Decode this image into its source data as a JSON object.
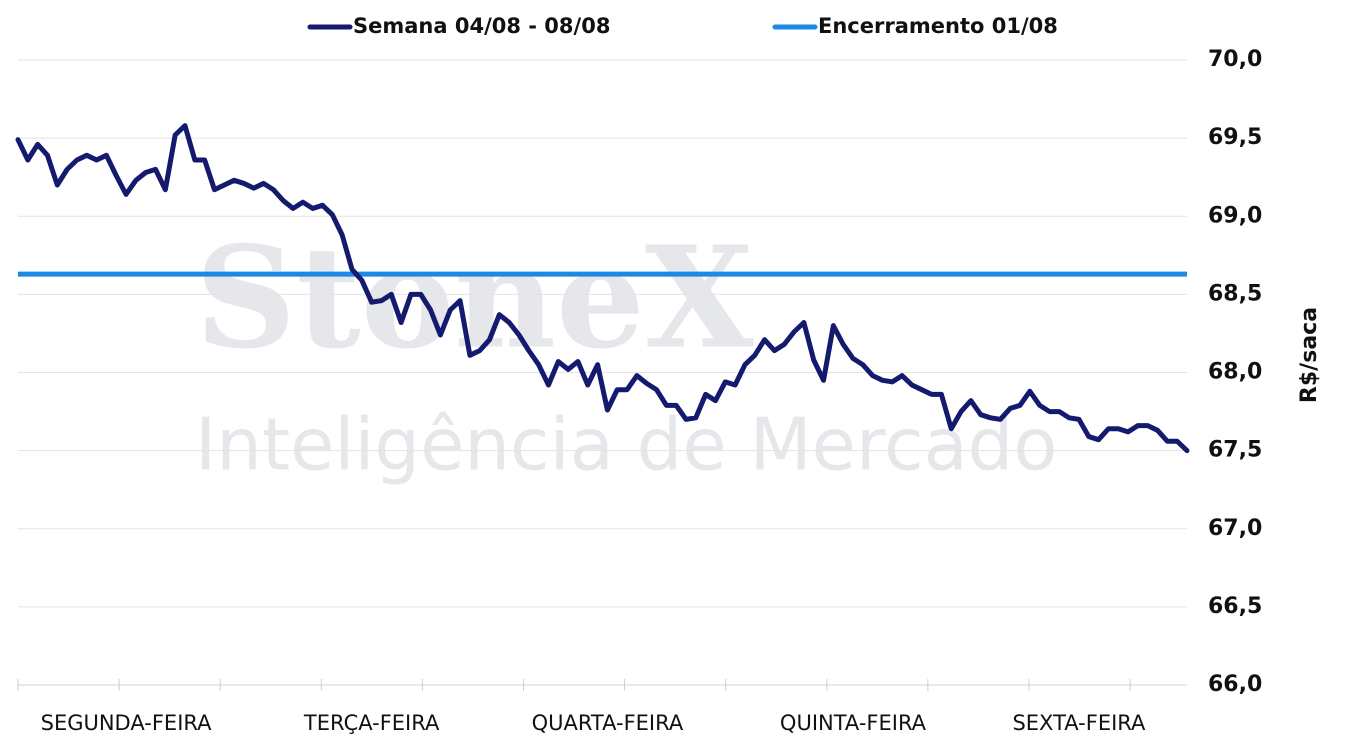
{
  "chart_data": {
    "type": "line",
    "watermark": [
      "StoneX",
      "Inteligência de Mercado"
    ],
    "y_label": "R$/saca",
    "categories": [
      null,
      null,
      null,
      null,
      null,
      null,
      null,
      null,
      null,
      null,
      null,
      "SEGUNDA-FEIRA",
      null,
      null,
      null,
      null,
      null,
      null,
      null,
      null,
      null,
      null,
      null,
      null,
      null,
      null,
      null,
      null,
      null,
      null,
      null,
      null,
      null,
      null,
      null,
      null,
      "TERÇA-FEIRA",
      null,
      null,
      null,
      null,
      null,
      null,
      null,
      null,
      null,
      null,
      null,
      null,
      null,
      null,
      null,
      null,
      null,
      null,
      null,
      null,
      null,
      null,
      null,
      "QUARTA-FEIRA",
      null,
      null,
      null,
      null,
      null,
      null,
      null,
      null,
      null,
      null,
      null,
      null,
      null,
      null,
      null,
      null,
      null,
      null,
      null,
      null,
      null,
      null,
      null,
      null,
      "QUINTA-FEIRA",
      null,
      null,
      null,
      null,
      null,
      null,
      null,
      null,
      null,
      null,
      null,
      null,
      null,
      null,
      null,
      null,
      null,
      null,
      null,
      null,
      null,
      null,
      "SEXTA-FEIRA",
      null,
      null,
      null,
      null,
      null,
      null,
      null,
      null,
      null,
      null,
      null
    ],
    "series": [
      {
        "name": "Semana 04/08 - 08/08",
        "color": "#141a6e",
        "values": [
          69.49,
          69.36,
          69.46,
          69.39,
          69.2,
          69.3,
          69.36,
          69.39,
          69.36,
          69.39,
          69.26,
          69.14,
          69.23,
          69.28,
          69.3,
          69.17,
          69.52,
          69.58,
          69.36,
          69.36,
          69.17,
          69.2,
          69.23,
          69.21,
          69.18,
          69.21,
          69.17,
          69.1,
          69.05,
          69.09,
          69.05,
          69.07,
          69.01,
          68.88,
          68.66,
          68.59,
          68.45,
          68.46,
          68.5,
          68.32,
          68.5,
          68.5,
          68.4,
          68.24,
          68.4,
          68.46,
          68.11,
          68.14,
          68.21,
          68.37,
          68.32,
          68.24,
          68.14,
          68.05,
          67.92,
          68.07,
          68.02,
          68.07,
          67.92,
          68.05,
          67.76,
          67.89,
          67.89,
          67.98,
          67.93,
          67.89,
          67.79,
          67.79,
          67.7,
          67.71,
          67.86,
          67.82,
          67.94,
          67.92,
          68.05,
          68.11,
          68.21,
          68.14,
          68.18,
          68.26,
          68.32,
          68.08,
          67.95,
          68.3,
          68.18,
          68.09,
          68.05,
          67.98,
          67.95,
          67.94,
          67.98,
          67.92,
          67.89,
          67.86,
          67.86,
          67.64,
          67.75,
          67.82,
          67.73,
          67.71,
          67.7,
          67.77,
          67.79,
          67.88,
          67.79,
          67.75,
          67.75,
          67.71,
          67.7,
          67.59,
          67.57,
          67.64,
          67.64,
          67.62,
          67.66,
          67.66,
          67.63,
          67.56,
          67.56,
          67.5
        ]
      }
    ],
    "reference_line": {
      "name": "Encerramento 01/08",
      "color": "#1e88e5",
      "value": 68.63
    },
    "ylim": [
      66,
      70
    ],
    "yticks": [
      {
        "value": 66,
        "label": "66,0"
      },
      {
        "value": 66.5,
        "label": "66,5"
      },
      {
        "value": 67,
        "label": "67,0"
      },
      {
        "value": 67.5,
        "label": "67,5"
      },
      {
        "value": 68,
        "label": "68,0"
      },
      {
        "value": 68.5,
        "label": "68,5"
      },
      {
        "value": 69,
        "label": "69,0"
      },
      {
        "value": 69.5,
        "label": "69,5"
      },
      {
        "value": 70,
        "label": "70,0"
      }
    ],
    "grid": true
  }
}
